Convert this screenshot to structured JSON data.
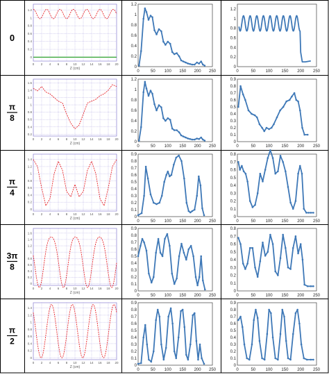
{
  "row_labels": [
    {
      "num": "0",
      "den": ""
    },
    {
      "num": "π",
      "den": "8"
    },
    {
      "num": "π",
      "den": "4"
    },
    {
      "num": "3π",
      "den": "8"
    },
    {
      "num": "π",
      "den": "2"
    }
  ],
  "colors": {
    "sim_curve": "#e8262a",
    "sim_baseline": "#2ca02c",
    "sim_grid": "#9a8fd8",
    "measured": "#3e78b7",
    "border": "#000000"
  },
  "chart_data": [
    {
      "type": "line",
      "panel": "simulated",
      "row": 0,
      "xlabel": "Z (cm)",
      "xticks": [
        0,
        2,
        4,
        6,
        8,
        10,
        12,
        14,
        16,
        18,
        20
      ],
      "yticks": [
        0,
        0.2,
        0.4,
        0.6,
        0.8,
        1,
        1.2
      ],
      "ylim": [
        -0.1,
        1.35
      ],
      "curve": {
        "kind": "osc",
        "base": 1.1,
        "amp": 0.12,
        "period": 3.2,
        "phase": 0
      },
      "baseline": 0
    },
    {
      "type": "line",
      "panel": "measured",
      "row": 0,
      "xticks": [
        0,
        50,
        100,
        150,
        200,
        250
      ],
      "yticks": [
        0,
        0.2,
        0.4,
        0.6,
        0.8,
        1,
        1.2
      ],
      "ylim": [
        0,
        1.2
      ],
      "x": [
        3,
        10,
        18,
        23,
        28,
        35,
        42,
        48,
        55,
        62,
        70,
        78,
        85,
        92,
        100,
        108,
        115,
        122,
        130,
        138,
        145,
        152,
        160,
        168,
        175,
        182,
        190,
        198,
        205,
        212,
        218,
        224
      ],
      "y": [
        0.02,
        0.3,
        0.92,
        1.12,
        1.05,
        0.9,
        0.98,
        0.95,
        0.7,
        0.62,
        0.72,
        0.68,
        0.48,
        0.42,
        0.48,
        0.44,
        0.28,
        0.24,
        0.26,
        0.2,
        0.12,
        0.1,
        0.08,
        0.06,
        0.05,
        0.04,
        0.04,
        0.08,
        0.06,
        0.1,
        0.04,
        0.02
      ]
    },
    {
      "type": "line",
      "panel": "measured",
      "row": 0,
      "xticks": [
        0,
        50,
        100,
        150,
        200,
        250
      ],
      "yticks": [
        0,
        0.2,
        0.4,
        0.6,
        0.8,
        1,
        1.2
      ],
      "ylim": [
        0,
        1.3
      ],
      "curve": {
        "kind": "osc",
        "base": 0.9,
        "amp": 0.16,
        "period": 21,
        "phase": 0.5,
        "x0": 5,
        "x1": 198
      },
      "tail": [
        [
          200,
          0.3
        ],
        [
          205,
          0.1
        ],
        [
          215,
          0.1
        ],
        [
          232,
          0.12
        ]
      ]
    },
    {
      "type": "line",
      "panel": "simulated",
      "row": 1,
      "xlabel": "Z (cm)",
      "xticks": [
        0,
        2,
        4,
        6,
        8,
        10,
        12,
        14,
        16,
        18,
        20
      ],
      "yticks": [
        0.2,
        0.4,
        0.6,
        0.8,
        1,
        1.2,
        1.4,
        1.6
      ],
      "ylim": [
        0.15,
        1.7
      ],
      "x": [
        0,
        1,
        2,
        3,
        4,
        5,
        6,
        7,
        8,
        9,
        10,
        11,
        12,
        13,
        14,
        15,
        16,
        17,
        18,
        19,
        20
      ],
      "y": [
        1.45,
        1.38,
        1.5,
        1.35,
        1.3,
        1.2,
        1.1,
        1.05,
        0.75,
        0.5,
        0.35,
        0.45,
        0.75,
        1.05,
        1.1,
        1.15,
        1.25,
        1.3,
        1.4,
        1.55,
        1.5
      ]
    },
    {
      "type": "line",
      "panel": "measured",
      "row": 1,
      "xticks": [
        0,
        50,
        100,
        150,
        200,
        250
      ],
      "yticks": [
        0,
        0.2,
        0.4,
        0.6,
        0.8,
        1,
        1.2
      ],
      "ylim": [
        0,
        1.2
      ],
      "x": [
        3,
        10,
        18,
        23,
        28,
        35,
        42,
        48,
        55,
        62,
        70,
        78,
        85,
        92,
        100,
        108,
        115,
        122,
        130,
        138,
        145,
        152,
        160,
        168,
        175,
        182,
        190,
        198,
        205,
        212,
        218,
        224
      ],
      "y": [
        0.02,
        0.28,
        0.95,
        1.15,
        1.02,
        0.88,
        0.98,
        0.92,
        0.72,
        0.6,
        0.7,
        0.66,
        0.45,
        0.4,
        0.45,
        0.42,
        0.25,
        0.22,
        0.22,
        0.18,
        0.12,
        0.1,
        0.08,
        0.06,
        0.05,
        0.04,
        0.04,
        0.06,
        0.05,
        0.08,
        0.04,
        0.02
      ]
    },
    {
      "type": "line",
      "panel": "measured",
      "row": 1,
      "xticks": [
        0,
        50,
        100,
        150,
        200,
        250
      ],
      "yticks": [
        0,
        0.1,
        0.2,
        0.3,
        0.4,
        0.5,
        0.6,
        0.7,
        0.8,
        0.9
      ],
      "ylim": [
        0,
        0.9
      ],
      "x": [
        3,
        10,
        18,
        25,
        35,
        45,
        55,
        62,
        70,
        78,
        85,
        92,
        100,
        108,
        115,
        125,
        135,
        145,
        155,
        165,
        172,
        180,
        186,
        192,
        198,
        205,
        212,
        222
      ],
      "y": [
        0.5,
        0.8,
        0.68,
        0.6,
        0.45,
        0.4,
        0.38,
        0.35,
        0.25,
        0.2,
        0.15,
        0.2,
        0.18,
        0.2,
        0.25,
        0.35,
        0.45,
        0.5,
        0.58,
        0.6,
        0.65,
        0.7,
        0.6,
        0.58,
        0.45,
        0.2,
        0.1,
        0.1
      ]
    },
    {
      "type": "line",
      "panel": "simulated",
      "row": 2,
      "xlabel": "Z (cm)",
      "xticks": [
        0,
        2,
        4,
        6,
        8,
        10,
        12,
        14,
        16,
        18,
        20
      ],
      "yticks": [
        0,
        0.2,
        0.4,
        0.6,
        0.8,
        1,
        1.2,
        1.4
      ],
      "ylim": [
        -0.05,
        1.55
      ],
      "x": [
        0,
        1,
        2,
        3,
        4,
        5,
        6,
        7,
        8,
        9,
        10,
        11,
        12,
        13,
        14,
        15,
        16,
        17,
        18,
        19,
        20
      ],
      "y": [
        1.4,
        1.2,
        0.6,
        0.1,
        0.3,
        1.0,
        1.35,
        1.1,
        0.5,
        0.35,
        0.7,
        0.35,
        0.5,
        1.1,
        1.35,
        1.0,
        0.3,
        0.1,
        0.6,
        1.2,
        1.4
      ]
    },
    {
      "type": "line",
      "panel": "measured",
      "row": 2,
      "xticks": [
        0,
        50,
        100,
        150,
        200,
        250
      ],
      "yticks": [
        0,
        0.1,
        0.2,
        0.3,
        0.4,
        0.5,
        0.6,
        0.7,
        0.8,
        0.9
      ],
      "ylim": [
        0,
        0.9
      ],
      "x": [
        0,
        12,
        20,
        26,
        33,
        42,
        52,
        62,
        72,
        80,
        88,
        95,
        100,
        106,
        112,
        120,
        128,
        137,
        146,
        155,
        163,
        170,
        176,
        182,
        190,
        198,
        204,
        210,
        216,
        222
      ],
      "y": [
        0.02,
        0.05,
        0.3,
        0.72,
        0.55,
        0.32,
        0.2,
        0.18,
        0.2,
        0.3,
        0.5,
        0.6,
        0.65,
        0.58,
        0.6,
        0.75,
        0.85,
        0.88,
        0.8,
        0.55,
        0.2,
        0.08,
        0.06,
        0.08,
        0.1,
        0.3,
        0.58,
        0.45,
        0.12,
        0.02
      ]
    },
    {
      "type": "line",
      "panel": "measured",
      "row": 2,
      "xticks": [
        0,
        50,
        100,
        150,
        200,
        250
      ],
      "yticks": [
        0,
        0.1,
        0.2,
        0.3,
        0.4,
        0.5,
        0.6,
        0.7,
        0.8
      ],
      "ylim": [
        0,
        0.8
      ],
      "x": [
        3,
        8,
        14,
        20,
        26,
        32,
        40,
        48,
        56,
        64,
        72,
        80,
        88,
        96,
        104,
        112,
        120,
        128,
        136,
        144,
        152,
        160,
        168,
        176,
        184,
        192,
        198,
        204,
        210,
        218,
        225,
        232,
        240
      ],
      "y": [
        0.7,
        0.6,
        0.65,
        0.58,
        0.55,
        0.45,
        0.2,
        0.12,
        0.15,
        0.3,
        0.55,
        0.45,
        0.6,
        0.75,
        0.85,
        0.75,
        0.55,
        0.58,
        0.78,
        0.7,
        0.58,
        0.38,
        0.18,
        0.1,
        0.2,
        0.55,
        0.65,
        0.55,
        0.1,
        0.05,
        0.05,
        0.05,
        0.05
      ]
    },
    {
      "type": "line",
      "panel": "simulated",
      "row": 3,
      "xlabel": "Z (cm)",
      "xticks": [
        0,
        2,
        4,
        6,
        8,
        10,
        12,
        14,
        16,
        18,
        20
      ],
      "yticks": [
        0,
        0.2,
        0.4,
        0.6,
        0.8,
        1,
        1.2,
        1.4,
        1.6
      ],
      "ylim": [
        -0.05,
        1.75
      ],
      "curve": {
        "kind": "osc",
        "base": 0.8,
        "amp": 0.8,
        "period": 5.8,
        "phase": 1.6,
        "x0": 0,
        "x1": 20,
        "ripple": 0.12
      }
    },
    {
      "type": "line",
      "panel": "measured",
      "row": 3,
      "xticks": [
        0,
        50,
        100,
        150,
        200,
        250
      ],
      "yticks": [
        0,
        0.1,
        0.2,
        0.3,
        0.4,
        0.5,
        0.6,
        0.7,
        0.8,
        0.9
      ],
      "ylim": [
        0,
        0.9
      ],
      "x": [
        0,
        8,
        14,
        20,
        28,
        36,
        45,
        52,
        60,
        68,
        75,
        82,
        90,
        98,
        106,
        114,
        122,
        130,
        138,
        146,
        154,
        162,
        170,
        178,
        186,
        194,
        200,
        206,
        212,
        218,
        225
      ],
      "y": [
        0.5,
        0.65,
        0.75,
        0.7,
        0.58,
        0.25,
        0.12,
        0.2,
        0.55,
        0.75,
        0.55,
        0.5,
        0.75,
        0.82,
        0.65,
        0.25,
        0.1,
        0.18,
        0.5,
        0.68,
        0.55,
        0.45,
        0.6,
        0.65,
        0.5,
        0.2,
        0.08,
        0.2,
        0.5,
        0.15,
        0.02
      ]
    },
    {
      "type": "line",
      "panel": "measured",
      "row": 3,
      "xticks": [
        0,
        50,
        100,
        150,
        200,
        250
      ],
      "yticks": [
        0,
        0.1,
        0.2,
        0.3,
        0.4,
        0.5,
        0.6,
        0.7,
        0.8
      ],
      "ylim": [
        0,
        0.8
      ],
      "x": [
        3,
        10,
        18,
        25,
        32,
        40,
        48,
        56,
        64,
        72,
        80,
        88,
        96,
        104,
        112,
        120,
        128,
        136,
        144,
        152,
        160,
        168,
        176,
        184,
        192,
        200,
        206,
        212,
        222,
        232,
        240
      ],
      "y": [
        0.68,
        0.6,
        0.35,
        0.28,
        0.35,
        0.55,
        0.55,
        0.3,
        0.18,
        0.38,
        0.62,
        0.45,
        0.5,
        0.72,
        0.6,
        0.25,
        0.2,
        0.42,
        0.72,
        0.55,
        0.3,
        0.28,
        0.55,
        0.7,
        0.48,
        0.6,
        0.4,
        0.08,
        0.06,
        0.06,
        0.06
      ]
    },
    {
      "type": "line",
      "panel": "simulated",
      "row": 4,
      "xlabel": "Z (cm)",
      "xticks": [
        0,
        2,
        4,
        6,
        8,
        10,
        12,
        14,
        16,
        18,
        20
      ],
      "yticks": [
        0,
        0.2,
        0.4,
        0.6,
        0.8,
        1,
        1.2,
        1.4
      ],
      "ylim": [
        -0.05,
        1.55
      ],
      "curve": {
        "kind": "osc",
        "base": 0.75,
        "amp": 0.75,
        "period": 5,
        "phase": 0.8,
        "x0": 0,
        "x1": 20
      }
    },
    {
      "type": "line",
      "panel": "measured",
      "row": 4,
      "xticks": [
        0,
        50,
        100,
        150,
        200,
        250
      ],
      "yticks": [
        0,
        0.1,
        0.2,
        0.3,
        0.4,
        0.5,
        0.6,
        0.7,
        0.8,
        0.9
      ],
      "ylim": [
        0,
        0.9
      ],
      "x": [
        0,
        10,
        18,
        24,
        30,
        36,
        44,
        52,
        60,
        66,
        72,
        78,
        86,
        94,
        102,
        110,
        116,
        122,
        128,
        136,
        144,
        150,
        156,
        162,
        168,
        176,
        184,
        190,
        196,
        202,
        208,
        214,
        222
      ],
      "y": [
        0.02,
        0.03,
        0.4,
        0.58,
        0.3,
        0.08,
        0.05,
        0.2,
        0.65,
        0.8,
        0.7,
        0.3,
        0.08,
        0.25,
        0.7,
        0.82,
        0.6,
        0.2,
        0.1,
        0.4,
        0.78,
        0.8,
        0.55,
        0.15,
        0.08,
        0.3,
        0.72,
        0.75,
        0.35,
        0.08,
        0.3,
        0.1,
        0.02
      ]
    },
    {
      "type": "line",
      "panel": "measured",
      "row": 4,
      "xticks": [
        0,
        50,
        100,
        150,
        200,
        250
      ],
      "yticks": [
        0,
        0.1,
        0.2,
        0.3,
        0.4,
        0.5,
        0.6,
        0.7,
        0.8,
        0.9
      ],
      "ylim": [
        0,
        0.9
      ],
      "x": [
        3,
        10,
        16,
        22,
        30,
        38,
        46,
        52,
        58,
        64,
        70,
        78,
        86,
        94,
        100,
        106,
        112,
        120,
        128,
        136,
        142,
        148,
        154,
        160,
        168,
        176,
        184,
        190,
        196,
        202,
        210,
        220,
        232,
        240
      ],
      "y": [
        0.65,
        0.7,
        0.55,
        0.3,
        0.1,
        0.08,
        0.3,
        0.65,
        0.8,
        0.68,
        0.35,
        0.1,
        0.08,
        0.45,
        0.8,
        0.75,
        0.4,
        0.1,
        0.08,
        0.45,
        0.8,
        0.7,
        0.35,
        0.1,
        0.08,
        0.45,
        0.75,
        0.8,
        0.6,
        0.3,
        0.1,
        0.08,
        0.08,
        0.08
      ]
    }
  ]
}
